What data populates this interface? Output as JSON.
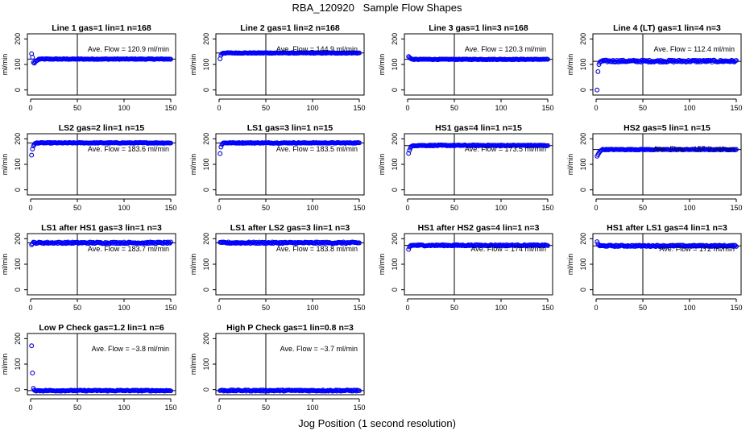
{
  "figure": {
    "title": "RBA_120920   Sample Flow Shapes",
    "xlabel": "Jog Position (1 second resolution)"
  },
  "chart_data": [
    {
      "type": "scatter",
      "title": "Line 1 gas=1 lin=1 n=168",
      "ylabel": "ml/min",
      "annotation": "Ave. Flow = 120.9  ml/min",
      "xlim": [
        0,
        150
      ],
      "ylim": [
        -20,
        220
      ],
      "xticks": [
        0,
        50,
        100,
        150
      ],
      "yticks": [
        0,
        100,
        200
      ],
      "hline": 120.9,
      "vline": 50,
      "start": [
        142,
        128,
        108,
        105,
        110,
        114,
        116,
        118
      ],
      "level": 121,
      "noise": 1.5
    },
    {
      "type": "scatter",
      "title": "Line 2 gas=1 lin=2 n=168",
      "ylabel": "ml/min",
      "annotation": "Ave. Flow = 144.9  ml/min",
      "xlim": [
        0,
        150
      ],
      "ylim": [
        -20,
        220
      ],
      "xticks": [
        0,
        50,
        100,
        150
      ],
      "yticks": [
        0,
        100,
        200
      ],
      "hline": 144.9,
      "vline": 50,
      "start": [
        122,
        136,
        142,
        144
      ],
      "level": 145,
      "noise": 1.5
    },
    {
      "type": "scatter",
      "title": "Line 3 gas=1 lin=3 n=168",
      "ylabel": "ml/min",
      "annotation": "Ave. Flow = 120.3  ml/min",
      "xlim": [
        0,
        150
      ],
      "ylim": [
        -20,
        220
      ],
      "xticks": [
        0,
        50,
        100,
        150
      ],
      "yticks": [
        0,
        100,
        200
      ],
      "hline": 120.3,
      "vline": 50,
      "start": [
        131,
        127,
        124,
        122
      ],
      "level": 120,
      "noise": 1.2
    },
    {
      "type": "scatter",
      "title": "Line 4 (LT) gas=1 lin=4 n=3",
      "ylabel": "ml/min",
      "annotation": "Ave. Flow = 112.4  ml/min",
      "xlim": [
        0,
        150
      ],
      "ylim": [
        -20,
        220
      ],
      "xticks": [
        0,
        50,
        100,
        150
      ],
      "yticks": [
        0,
        100,
        200
      ],
      "hline": 112.4,
      "vline": 50,
      "start": [
        0,
        72,
        100,
        108
      ],
      "level": 113,
      "noise": 4
    },
    {
      "type": "scatter",
      "title": "LS2 gas=2 lin=1 n=15",
      "ylabel": "ml/min",
      "annotation": "Ave. Flow = 183.6  ml/min",
      "xlim": [
        0,
        150
      ],
      "ylim": [
        -20,
        220
      ],
      "xticks": [
        0,
        50,
        100,
        150
      ],
      "yticks": [
        0,
        100,
        200
      ],
      "hline": 183.6,
      "vline": 50,
      "start": [
        136,
        160,
        172,
        178,
        182
      ],
      "level": 184,
      "noise": 1.5
    },
    {
      "type": "scatter",
      "title": "LS1 gas=3 lin=1 n=15",
      "ylabel": "ml/min",
      "annotation": "Ave. Flow = 183.5  ml/min",
      "xlim": [
        0,
        150
      ],
      "ylim": [
        -20,
        220
      ],
      "xticks": [
        0,
        50,
        100,
        150
      ],
      "yticks": [
        0,
        100,
        200
      ],
      "hline": 183.5,
      "vline": 50,
      "start": [
        142,
        168,
        178,
        182
      ],
      "level": 184,
      "noise": 1.5
    },
    {
      "type": "scatter",
      "title": "HS1 gas=4 lin=1 n=15",
      "ylabel": "ml/min",
      "annotation": "Ave. Flow = 173.5  ml/min",
      "xlim": [
        0,
        150
      ],
      "ylim": [
        -20,
        220
      ],
      "xticks": [
        0,
        50,
        100,
        150
      ],
      "yticks": [
        0,
        100,
        200
      ],
      "hline": 173.5,
      "vline": 50,
      "start": [
        143,
        155,
        164,
        170,
        172
      ],
      "level": 174,
      "noise": 1.8
    },
    {
      "type": "scatter",
      "title": "HS2 gas=5 lin=1 n=15",
      "ylabel": "ml/min",
      "annotation": "Ave. Flow = 157.9  ml/min",
      "xlim": [
        0,
        150
      ],
      "ylim": [
        -20,
        220
      ],
      "xticks": [
        0,
        50,
        100,
        150
      ],
      "yticks": [
        0,
        100,
        200
      ],
      "hline": 157.9,
      "vline": 50,
      "start": [
        132,
        138,
        145,
        150,
        154,
        156
      ],
      "level": 158,
      "noise": 1.5
    },
    {
      "type": "scatter",
      "title": "LS1 after HS1 gas=3 lin=1 n=3",
      "ylabel": "ml/min",
      "annotation": "Ave. Flow = 183.7  ml/min",
      "xlim": [
        0,
        150
      ],
      "ylim": [
        -20,
        220
      ],
      "xticks": [
        0,
        50,
        100,
        150
      ],
      "yticks": [
        0,
        100,
        200
      ],
      "hline": 183.7,
      "vline": 50,
      "start": [
        176,
        181
      ],
      "level": 184,
      "noise": 3
    },
    {
      "type": "scatter",
      "title": "LS1 after LS2 gas=3 lin=1 n=3",
      "ylabel": "ml/min",
      "annotation": "Ave. Flow = 183.8  ml/min",
      "xlim": [
        0,
        150
      ],
      "ylim": [
        -20,
        220
      ],
      "xticks": [
        0,
        50,
        100,
        150
      ],
      "yticks": [
        0,
        100,
        200
      ],
      "hline": 183.8,
      "vline": 50,
      "start": [
        186,
        185
      ],
      "level": 184,
      "noise": 3
    },
    {
      "type": "scatter",
      "title": "HS1 after HS2 gas=4 lin=1 n=3",
      "ylabel": "ml/min",
      "annotation": "Ave. Flow = 174  ml/min",
      "xlim": [
        0,
        150
      ],
      "ylim": [
        -20,
        220
      ],
      "xticks": [
        0,
        50,
        100,
        150
      ],
      "yticks": [
        0,
        100,
        200
      ],
      "hline": 174,
      "vline": 50,
      "start": [
        158,
        168,
        172
      ],
      "level": 174,
      "noise": 2.5
    },
    {
      "type": "scatter",
      "title": "HS1 after LS1 gas=4 lin=1 n=3",
      "ylabel": "ml/min",
      "annotation": "Ave. Flow = 172  ml/min",
      "xlim": [
        0,
        150
      ],
      "ylim": [
        -20,
        220
      ],
      "xticks": [
        0,
        50,
        100,
        150
      ],
      "yticks": [
        0,
        100,
        200
      ],
      "hline": 172,
      "vline": 50,
      "start": [
        188,
        180,
        175
      ],
      "level": 172,
      "noise": 2.5
    },
    {
      "type": "scatter",
      "title": "Low P Check gas=1.2 lin=1 n=6",
      "ylabel": "ml/min",
      "annotation": "Ave. Flow = −3.8  ml/min",
      "xlim": [
        0,
        150
      ],
      "ylim": [
        -20,
        220
      ],
      "xticks": [
        0,
        50,
        100,
        150
      ],
      "yticks": [
        0,
        100,
        200
      ],
      "hline": -3.8,
      "vline": 50,
      "start": [
        172,
        65,
        5,
        -2
      ],
      "level": -4,
      "noise": 2
    },
    {
      "type": "scatter",
      "title": "High P Check gas=1 lin=0.8 n=3",
      "ylabel": "ml/min",
      "annotation": "Ave. Flow = −3.7  ml/min",
      "xlim": [
        0,
        150
      ],
      "ylim": [
        -20,
        220
      ],
      "xticks": [
        0,
        50,
        100,
        150
      ],
      "yticks": [
        0,
        100,
        200
      ],
      "hline": -3.7,
      "vline": 50,
      "start": [
        -4,
        -3
      ],
      "level": -3.7,
      "noise": 2.5
    }
  ]
}
